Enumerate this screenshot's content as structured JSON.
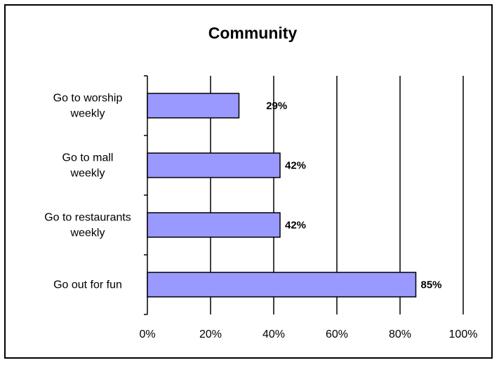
{
  "chart_data": {
    "type": "bar",
    "orientation": "horizontal",
    "title": "Community",
    "categories": [
      [
        "Go to worship",
        "weekly"
      ],
      [
        "Go to mall",
        "weekly"
      ],
      [
        "Go to restaurants",
        "weekly"
      ],
      [
        "Go out for fun"
      ]
    ],
    "values": [
      29,
      42,
      42,
      85
    ],
    "data_labels": [
      "29%",
      "42%",
      "42%",
      "85%"
    ],
    "xlim": [
      0,
      100
    ],
    "x_ticks": [
      "0%",
      "20%",
      "40%",
      "60%",
      "80%",
      "100%"
    ],
    "grid": "vertical",
    "legend": "none",
    "colors": {
      "bar_fill": "#9999ff",
      "bar_stroke": "#000000",
      "grid": "#000000"
    }
  }
}
